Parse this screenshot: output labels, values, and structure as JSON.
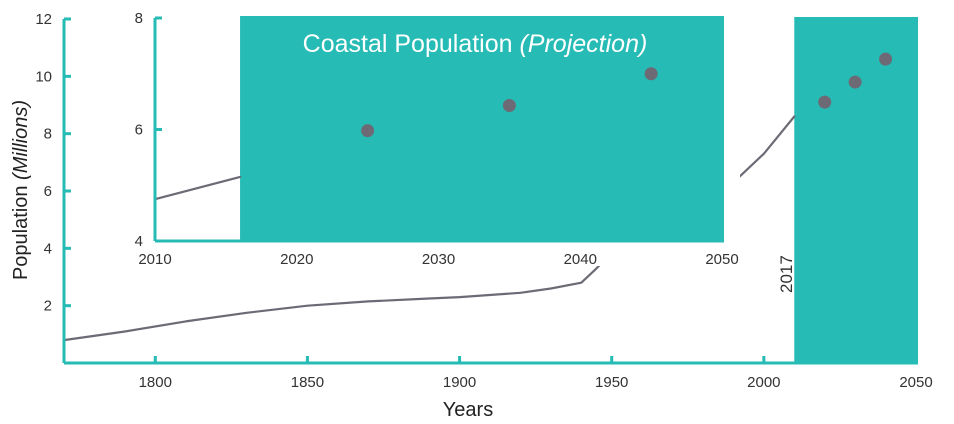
{
  "colors": {
    "teal": "#26bbb5",
    "line": "#6d6a75",
    "point": "#6d6a75",
    "text": "#333333"
  },
  "chart_data": [
    {
      "type": "line",
      "title": "",
      "xlabel": "Years",
      "ylabel_main": "Population ",
      "ylabel_italic": "(Millions)",
      "xlim": [
        1770,
        2050
      ],
      "ylim": [
        0,
        12
      ],
      "xticks": [
        1800,
        1850,
        1900,
        1950,
        2000,
        2050
      ],
      "yticks": [
        2,
        4,
        6,
        8,
        10,
        12
      ],
      "highlight": {
        "x_from": 2010,
        "x_to": 2050,
        "label": "2017",
        "color": "#26bbb5"
      },
      "series": [
        {
          "kind": "line",
          "x": [
            1770,
            1790,
            1810,
            1830,
            1850,
            1870,
            1890,
            1900,
            1920,
            1930,
            1940,
            1945,
            1950,
            1960,
            1970,
            1980,
            1990,
            2000,
            2010
          ],
          "y": [
            0.8,
            1.1,
            1.45,
            1.75,
            2.0,
            2.15,
            2.25,
            2.3,
            2.45,
            2.6,
            2.8,
            3.3,
            3.85,
            4.25,
            4.75,
            5.4,
            6.3,
            7.3,
            8.6
          ]
        },
        {
          "kind": "scatter",
          "x": [
            2020,
            2030,
            2040
          ],
          "y": [
            9.1,
            9.8,
            10.6
          ]
        }
      ]
    },
    {
      "type": "line",
      "title_main": "Coastal Population ",
      "title_italic": "(Projection)",
      "xlim": [
        2010,
        2050
      ],
      "ylim": [
        4,
        8
      ],
      "xticks": [
        2010,
        2020,
        2030,
        2040,
        2050
      ],
      "yticks": [
        4,
        6,
        8
      ],
      "highlight": {
        "x_from": 2016,
        "x_to": 2050,
        "color": "#26bbb5"
      },
      "series": [
        {
          "kind": "line",
          "x": [
            2010,
            2016
          ],
          "y": [
            4.75,
            5.15
          ]
        },
        {
          "kind": "scatter",
          "x": [
            2025,
            2035,
            2045
          ],
          "y": [
            5.98,
            6.43,
            7.0
          ]
        }
      ]
    }
  ]
}
